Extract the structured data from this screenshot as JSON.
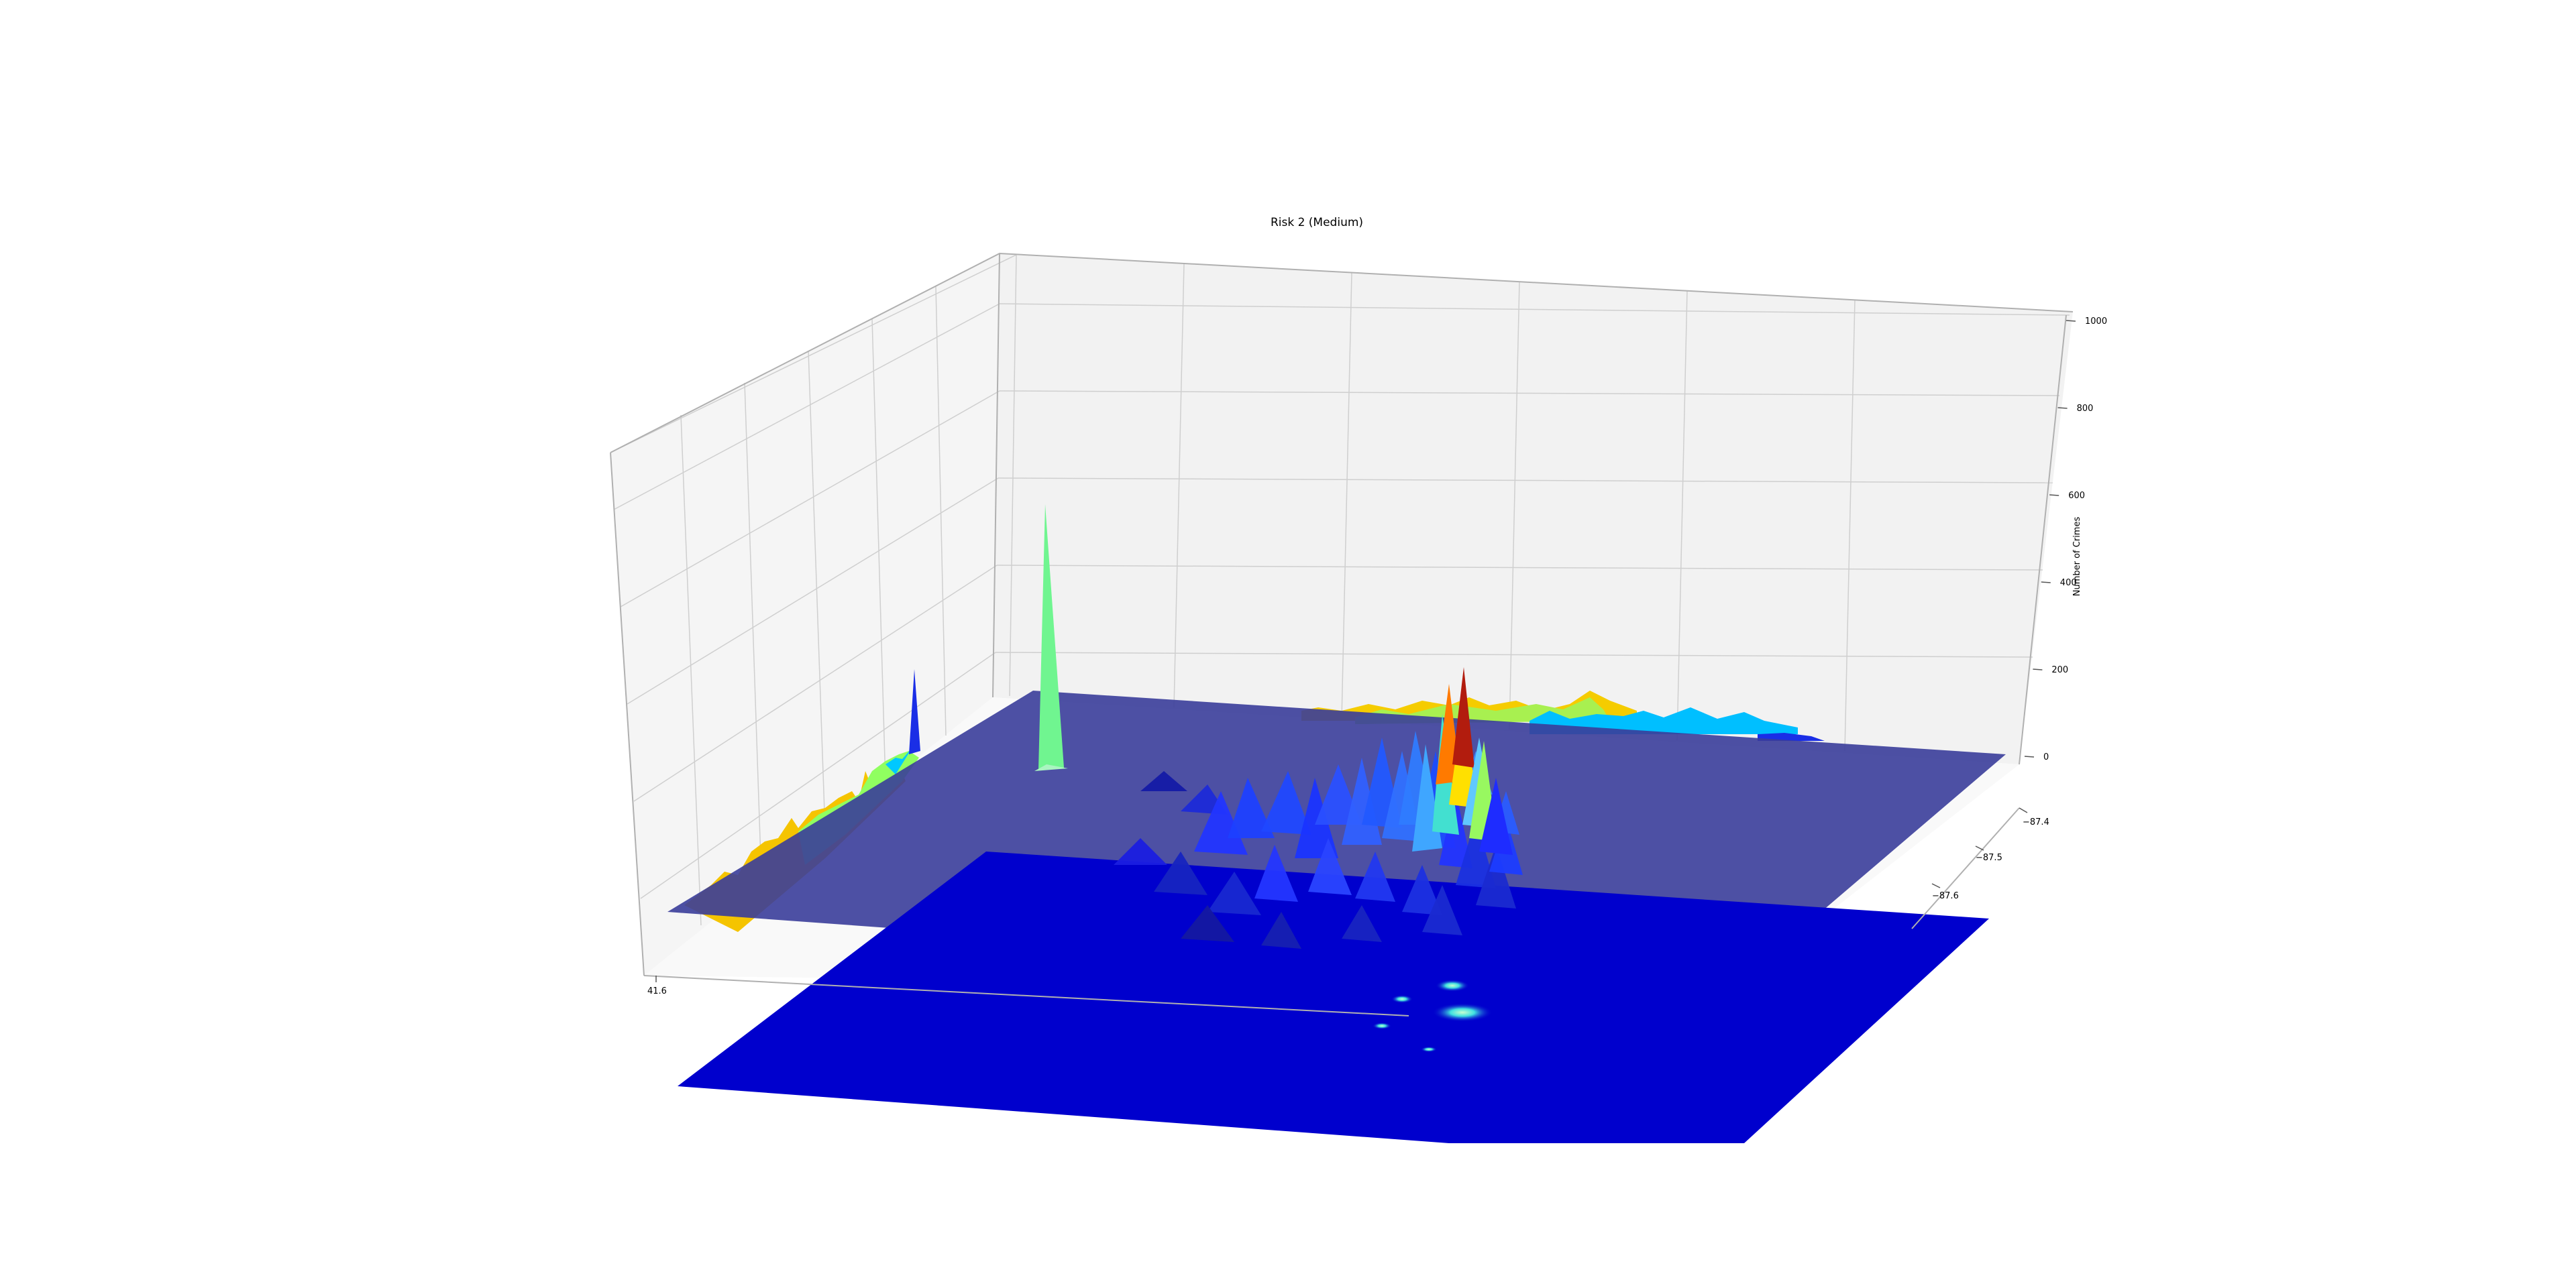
{
  "chart_data": {
    "type": "surface3d",
    "title": "Risk 2 (Medium)",
    "xlabel": "",
    "ylabel": "",
    "zlabel": "Number of Crimes",
    "x_ticks": [
      "41.6"
    ],
    "y_ticks": [
      "−87.6",
      "−87.5",
      "−87.4"
    ],
    "z_ticks": [
      0,
      200,
      400,
      600,
      800,
      1000
    ],
    "zlim": [
      -200,
      1000
    ],
    "colormap": "jet",
    "peaks": [
      {
        "label": "west-spike",
        "value": 580,
        "color": "#70f590"
      },
      {
        "label": "left-wall-spike",
        "value": 190,
        "color": "#1a2ee6"
      },
      {
        "label": "center-red-peak",
        "value": 200,
        "color": "#b21c0e"
      },
      {
        "label": "center-orange-peak",
        "value": 190,
        "color": "#ff7a00"
      }
    ],
    "wall_projection_colors": [
      "#ffd000",
      "#a0ff50",
      "#00c8ff",
      "#1a2ee6"
    ],
    "surface_base_color": "#3a3d9a",
    "contour_floor_color": "#0000cd"
  }
}
